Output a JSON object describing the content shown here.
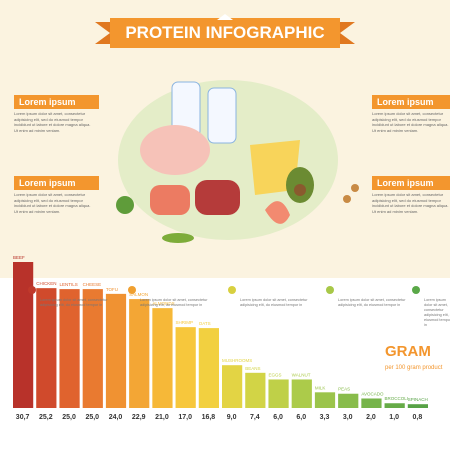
{
  "header": {
    "title": "PROTEIN INFOGRAPHIC"
  },
  "callouts": [
    {
      "heading": "Lorem ipsum",
      "text": "Lorem ipsum dolor sit amet, consectetur adipisicing elit, sed do eiusmod tempor incididunt ut labore et dolore magna aliqua. Ut enim ad minim veniam."
    },
    {
      "heading": "Lorem ipsum",
      "text": "Lorem ipsum dolor sit amet, consectetur adipisicing elit, sed do eiusmod tempor incididunt ut labore et dolore magna aliqua. Ut enim ad minim veniam."
    },
    {
      "heading": "Lorem ipsum",
      "text": "Lorem ipsum dolor sit amet, consectetur adipisicing elit, sed do eiusmod tempor incididunt ut labore et dolore magna aliqua. Ut enim ad minim veniam."
    },
    {
      "heading": "Lorem ipsum",
      "text": "Lorem ipsum dolor sit amet, consectetur adipisicing elit, sed do eiusmod tempor incididunt ut labore et dolore magna aliqua. Ut enim ad minim veniam."
    }
  ],
  "notes": [
    {
      "text": "Lorem ipsum dolor sit amet, consectetur adipisicing elit, do eiusmod tempor in",
      "color": "#c0392b"
    },
    {
      "text": "Lorem ipsum dolor sit amet, consectetur adipisicing elit, do eiusmod tempor in",
      "color": "#f0a030"
    },
    {
      "text": "Lorem ipsum dolor sit amet, consectetur adipisicing elit, do eiusmod tempor in",
      "color": "#d8d040"
    },
    {
      "text": "Lorem ipsum dolor sit amet, consectetur adipisicing elit, do eiusmod tempor in",
      "color": "#a8c848"
    },
    {
      "text": "Lorem ipsum dolor sit amet, consectetur adipisicing elit, do eiusmod tempor in",
      "color": "#5aa848"
    }
  ],
  "chart_data": {
    "type": "bar",
    "title": "GRAM",
    "subtitle": "per 100 gram product",
    "categories": [
      "BEEF",
      "CHICKEN",
      "LENTILS",
      "CHEESE",
      "TOFU",
      "SALMON",
      "ALMONDS",
      "SHRIMP",
      "OATS",
      "MUSHROOMS",
      "BEANS",
      "EGGS",
      "WALNUT",
      "MILK",
      "PEAS",
      "AVOCADO",
      "BROCCOLI",
      "SPINACH"
    ],
    "values": [
      30.7,
      25.2,
      25.0,
      25.0,
      24.0,
      22.9,
      21.0,
      17.0,
      16.8,
      9.0,
      7.4,
      6.0,
      6.0,
      3.3,
      3.0,
      2.0,
      1.0,
      0.8
    ],
    "value_labels": [
      "30,7",
      "25,2",
      "25,0",
      "25,0",
      "24,0",
      "22,9",
      "21,0",
      "17,0",
      "16,8",
      "9,0",
      "7,4",
      "6,0",
      "6,0",
      "3,3",
      "3,0",
      "2,0",
      "1,0",
      "0,8"
    ],
    "colors": [
      "#b8322a",
      "#d04a2c",
      "#e0632e",
      "#e97a30",
      "#f09232",
      "#f3a635",
      "#f6b838",
      "#f7c73c",
      "#f2d040",
      "#e3d444",
      "#d2d446",
      "#bfd048",
      "#accb4a",
      "#9bc44b",
      "#88bc4b",
      "#76b44a",
      "#66ab48",
      "#57a246"
    ]
  }
}
